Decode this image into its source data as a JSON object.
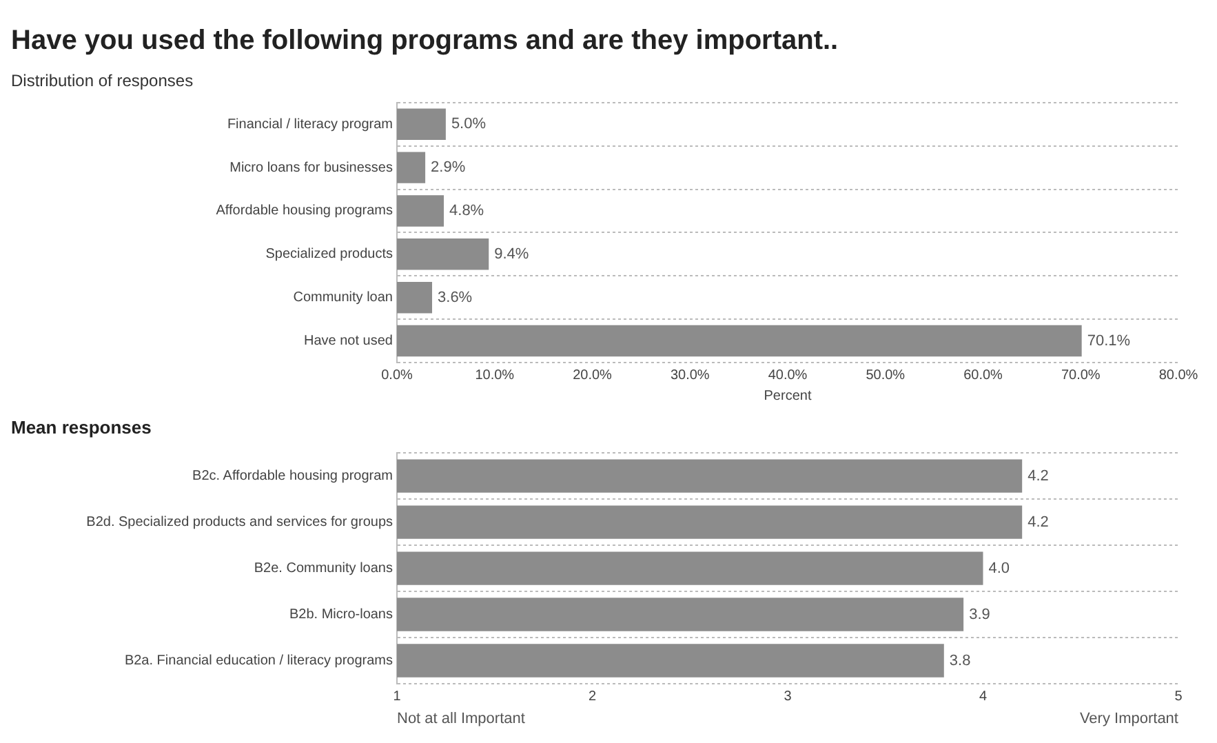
{
  "chart_data": [
    {
      "type": "bar",
      "orientation": "horizontal",
      "title": "Have you used the following programs and are they important..",
      "subtitle": "Distribution of responses",
      "xlabel": "Percent",
      "categories": [
        "Financial / literacy program",
        "Micro loans for businesses",
        "Affordable housing programs",
        "Specialized products",
        "Community loan",
        "Have not used"
      ],
      "values": [
        5.0,
        2.9,
        4.8,
        9.4,
        3.6,
        70.1
      ],
      "value_labels": [
        "5.0%",
        "2.9%",
        "4.8%",
        "9.4%",
        "3.6%",
        "70.1%"
      ],
      "color": "#8c8c8c",
      "xlim": [
        0,
        80
      ],
      "xticks": [
        {
          "value": 0,
          "label": "0.0%"
        },
        {
          "value": 10,
          "label": "10.0%"
        },
        {
          "value": 20,
          "label": "20.0%"
        },
        {
          "value": 30,
          "label": "30.0%"
        },
        {
          "value": 40,
          "label": "40.0%"
        },
        {
          "value": 50,
          "label": "50.0%"
        },
        {
          "value": 60,
          "label": "60.0%"
        },
        {
          "value": 70,
          "label": "70.0%"
        },
        {
          "value": 80,
          "label": "80.0%"
        }
      ],
      "grid": "y",
      "legend": false
    },
    {
      "type": "bar",
      "orientation": "horizontal",
      "title": "Mean responses",
      "categories": [
        "B2c. Affordable housing program",
        "B2d. Specialized products and services for groups",
        "B2e. Community loans",
        "B2b. Micro-loans",
        "B2a. Financial education / literacy programs"
      ],
      "values": [
        4.2,
        4.2,
        4.0,
        3.9,
        3.8
      ],
      "value_labels": [
        "4.2",
        "4.2",
        "4.0",
        "3.9",
        "3.8"
      ],
      "color": "#8c8c8c",
      "xlim": [
        1,
        5
      ],
      "xticks": [
        1,
        2,
        3,
        4,
        5
      ],
      "annotations": [
        "Not at all Important",
        "Very Important"
      ],
      "grid": "y",
      "legend": false
    }
  ]
}
